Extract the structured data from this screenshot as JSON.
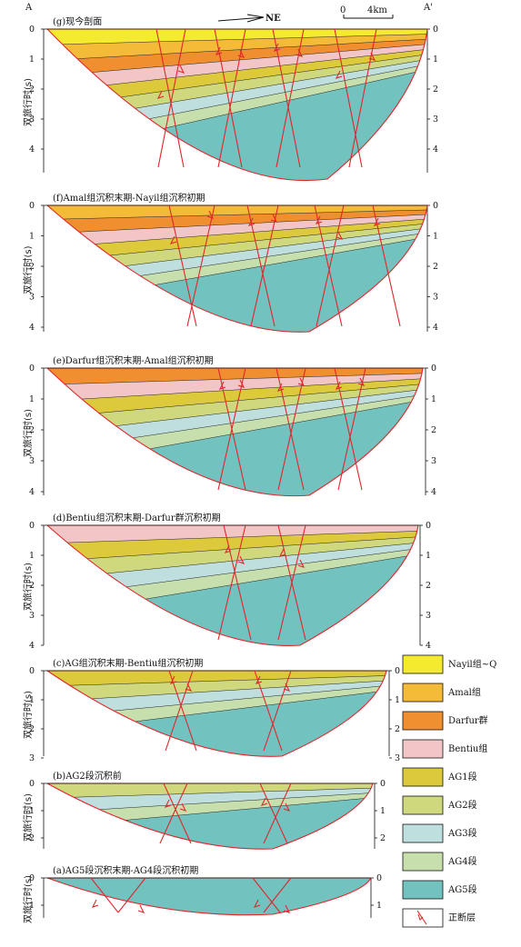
{
  "colors": {
    "nayil": "#f5eb2e",
    "amal": "#f3bb37",
    "darfur": "#ef8f30",
    "bentiu": "#f2c6c6",
    "ag1": "#dcca3c",
    "ag2": "#cfd87c",
    "ag3": "#bfdede",
    "ag4": "#c7dfad",
    "ag5": "#72c2c0",
    "fault": "#e0262b"
  },
  "header": {
    "left_label": "A",
    "right_label": "A'",
    "north_label": "NE",
    "scale_zero": "0",
    "scale_value": "4km"
  },
  "y_axis_label": "双旅行时(s)",
  "panels": [
    {
      "id": "g",
      "title": "(g)现今剖面",
      "ticks": [
        "0",
        "1",
        "2",
        "3",
        "4"
      ]
    },
    {
      "id": "f",
      "title": "(f)Amal组沉积末期-Nayil组沉积初期",
      "ticks": [
        "0",
        "1",
        "2",
        "3",
        "4"
      ]
    },
    {
      "id": "e",
      "title": "(e)Darfur组沉积末期-Amal组沉积初期",
      "ticks": [
        "0",
        "1",
        "2",
        "3",
        "4"
      ]
    },
    {
      "id": "d",
      "title": "(d)Bentiu组沉积末期-Darfur群沉积初期",
      "ticks": [
        "0",
        "1",
        "2",
        "3",
        "4"
      ]
    },
    {
      "id": "c",
      "title": "(c)AG组沉积末期-Bentiu组沉积初期",
      "ticks": [
        "0",
        "1",
        "2",
        "3"
      ]
    },
    {
      "id": "b",
      "title": "(b)AG2段沉积前",
      "ticks": [
        "0",
        "1",
        "2"
      ]
    },
    {
      "id": "a",
      "title": "(a)AG5段沉积末期-AG4段沉积初期",
      "ticks": [
        "0",
        "1"
      ]
    }
  ],
  "legend": [
    {
      "key": "nayil",
      "label": "Nayil组~Q",
      "icon": "swatch"
    },
    {
      "key": "amal",
      "label": "Amal组",
      "icon": "swatch"
    },
    {
      "key": "darfur",
      "label": "Darfur群",
      "icon": "swatch"
    },
    {
      "key": "bentiu",
      "label": "Bentiu组",
      "icon": "swatch"
    },
    {
      "key": "ag1",
      "label": "AG1段",
      "icon": "swatch"
    },
    {
      "key": "ag2",
      "label": "AG2段",
      "icon": "swatch"
    },
    {
      "key": "ag3",
      "label": "AG3段",
      "icon": "swatch"
    },
    {
      "key": "ag4",
      "label": "AG4段",
      "icon": "swatch"
    },
    {
      "key": "ag5",
      "label": "AG5段",
      "icon": "swatch"
    },
    {
      "key": "fault",
      "label": "正断层",
      "icon": "normal-fault-icon"
    }
  ]
}
